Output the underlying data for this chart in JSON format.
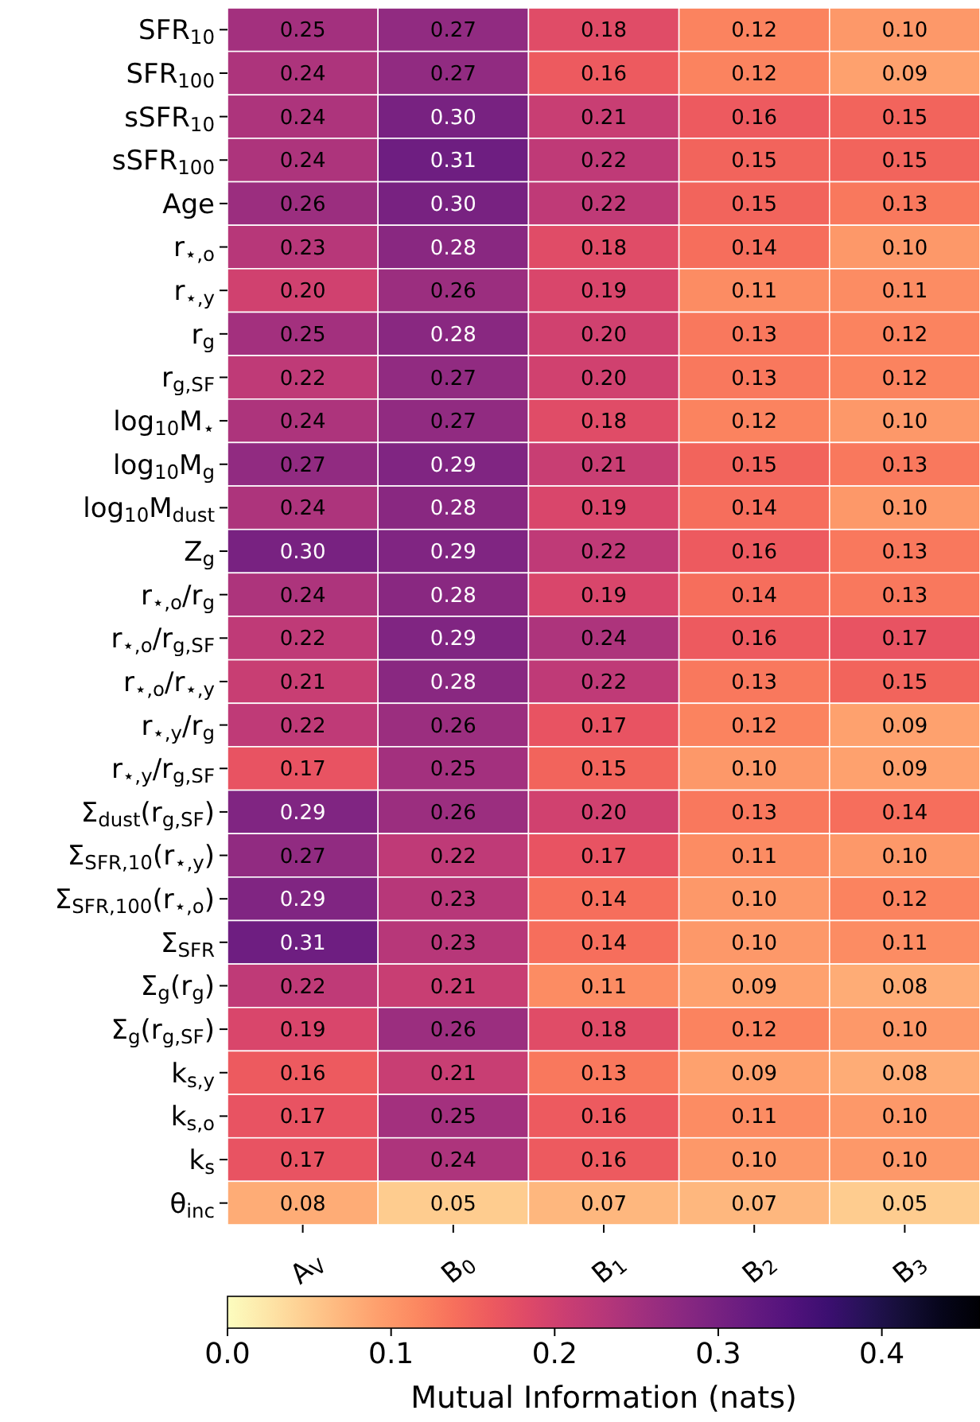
{
  "chart_data": {
    "type": "heatmap",
    "clabel": "Mutual Information (nats)",
    "categories": [
      "A$_{V}$",
      "B$_{0}$",
      "B$_{1}$",
      "B$_{2}$",
      "B$_{3}$"
    ],
    "y_categories": [
      "SFR$_{10}$",
      "SFR$_{100}$",
      "sSFR$_{10}$",
      "sSFR$_{100}$",
      "Age",
      "r$_{⋆,o}$",
      "r$_{⋆,y}$",
      "r$_{g}$",
      "r$_{g,SF}$",
      "log$_{10}$M$_{⋆}$",
      "log$_{10}$M$_{g}$",
      "log$_{10}$M$_{dust}$",
      "Z$_{g}$",
      "r$_{⋆,o}$/r$_{g}$",
      "r$_{⋆,o}$/r$_{g,SF}$",
      "r$_{⋆,o}$/r$_{⋆,y}$",
      "r$_{⋆,y}$/r$_{g}$",
      "r$_{⋆,y}$/r$_{g,SF}$",
      "Σ$_{dust}$(r$_{g,SF}$)",
      "Σ$_{SFR,10}$(r$_{⋆,y}$)",
      "Σ$_{SFR,100}$(r$_{⋆,o}$)",
      "Σ$_{SFR}$",
      "Σ$_{g}$(r$_{g}$)",
      "Σ$_{g}$(r$_{g,SF}$)",
      "k$_{s,y}$",
      "k$_{s,o}$",
      "k$_{s}$",
      "θ$_{inc}$"
    ],
    "cells": [
      [
        0.25,
        0.27,
        0.18,
        0.12,
        0.1
      ],
      [
        0.24,
        0.27,
        0.16,
        0.12,
        0.09
      ],
      [
        0.24,
        0.3,
        0.21,
        0.16,
        0.15
      ],
      [
        0.24,
        0.31,
        0.22,
        0.15,
        0.15
      ],
      [
        0.26,
        0.3,
        0.22,
        0.15,
        0.13
      ],
      [
        0.23,
        0.28,
        0.18,
        0.14,
        0.1
      ],
      [
        0.2,
        0.26,
        0.19,
        0.11,
        0.11
      ],
      [
        0.25,
        0.28,
        0.2,
        0.13,
        0.12
      ],
      [
        0.22,
        0.27,
        0.2,
        0.13,
        0.12
      ],
      [
        0.24,
        0.27,
        0.18,
        0.12,
        0.1
      ],
      [
        0.27,
        0.29,
        0.21,
        0.15,
        0.13
      ],
      [
        0.24,
        0.28,
        0.19,
        0.14,
        0.1
      ],
      [
        0.3,
        0.29,
        0.22,
        0.16,
        0.13
      ],
      [
        0.24,
        0.28,
        0.19,
        0.14,
        0.13
      ],
      [
        0.22,
        0.29,
        0.24,
        0.16,
        0.17
      ],
      [
        0.21,
        0.28,
        0.22,
        0.13,
        0.15
      ],
      [
        0.22,
        0.26,
        0.17,
        0.12,
        0.09
      ],
      [
        0.17,
        0.25,
        0.15,
        0.1,
        0.09
      ],
      [
        0.29,
        0.26,
        0.2,
        0.13,
        0.14
      ],
      [
        0.27,
        0.22,
        0.17,
        0.11,
        0.1
      ],
      [
        0.29,
        0.23,
        0.14,
        0.1,
        0.12
      ],
      [
        0.31,
        0.23,
        0.14,
        0.1,
        0.11
      ],
      [
        0.22,
        0.21,
        0.11,
        0.09,
        0.08
      ],
      [
        0.19,
        0.26,
        0.18,
        0.12,
        0.1
      ],
      [
        0.16,
        0.21,
        0.13,
        0.09,
        0.08
      ],
      [
        0.17,
        0.25,
        0.16,
        0.11,
        0.1
      ],
      [
        0.17,
        0.24,
        0.16,
        0.1,
        0.1
      ],
      [
        0.08,
        0.05,
        0.07,
        0.07,
        0.05
      ]
    ],
    "cell_labels": [
      [
        "0.25",
        "0.27",
        "0.18",
        "0.12",
        "0.10"
      ],
      [
        "0.24",
        "0.27",
        "0.16",
        "0.12",
        "0.09"
      ],
      [
        "0.24",
        "0.30",
        "0.21",
        "0.16",
        "0.15"
      ],
      [
        "0.24",
        "0.31",
        "0.22",
        "0.15",
        "0.15"
      ],
      [
        "0.26",
        "0.30",
        "0.22",
        "0.15",
        "0.13"
      ],
      [
        "0.23",
        "0.28",
        "0.18",
        "0.14",
        "0.10"
      ],
      [
        "0.20",
        "0.26",
        "0.19",
        "0.11",
        "0.11"
      ],
      [
        "0.25",
        "0.28",
        "0.20",
        "0.13",
        "0.12"
      ],
      [
        "0.22",
        "0.27",
        "0.20",
        "0.13",
        "0.12"
      ],
      [
        "0.24",
        "0.27",
        "0.18",
        "0.12",
        "0.10"
      ],
      [
        "0.27",
        "0.29",
        "0.21",
        "0.15",
        "0.13"
      ],
      [
        "0.24",
        "0.28",
        "0.19",
        "0.14",
        "0.10"
      ],
      [
        "0.30",
        "0.29",
        "0.22",
        "0.16",
        "0.13"
      ],
      [
        "0.24",
        "0.28",
        "0.19",
        "0.14",
        "0.13"
      ],
      [
        "0.22",
        "0.29",
        "0.24",
        "0.16",
        "0.17"
      ],
      [
        "0.21",
        "0.28",
        "0.22",
        "0.13",
        "0.15"
      ],
      [
        "0.22",
        "0.26",
        "0.17",
        "0.12",
        "0.09"
      ],
      [
        "0.17",
        "0.25",
        "0.15",
        "0.10",
        "0.09"
      ],
      [
        "0.29",
        "0.26",
        "0.20",
        "0.13",
        "0.14"
      ],
      [
        "0.27",
        "0.22",
        "0.17",
        "0.11",
        "0.10"
      ],
      [
        "0.29",
        "0.23",
        "0.14",
        "0.10",
        "0.12"
      ],
      [
        "0.31",
        "0.23",
        "0.14",
        "0.10",
        "0.11"
      ],
      [
        "0.22",
        "0.21",
        "0.11",
        "0.09",
        "0.08"
      ],
      [
        "0.19",
        "0.26",
        "0.18",
        "0.12",
        "0.10"
      ],
      [
        "0.16",
        "0.21",
        "0.13",
        "0.09",
        "0.08"
      ],
      [
        "0.17",
        "0.25",
        "0.16",
        "0.11",
        "0.10"
      ],
      [
        "0.17",
        "0.24",
        "0.16",
        "0.10",
        "0.10"
      ],
      [
        "0.08",
        "0.05",
        "0.07",
        "0.07",
        "0.05"
      ]
    ],
    "clim": [
      0,
      0.46
    ],
    "cticks": [
      {
        "value": 0,
        "label": "0.0"
      },
      0.1,
      0.2,
      0.3,
      0.4
    ]
  }
}
